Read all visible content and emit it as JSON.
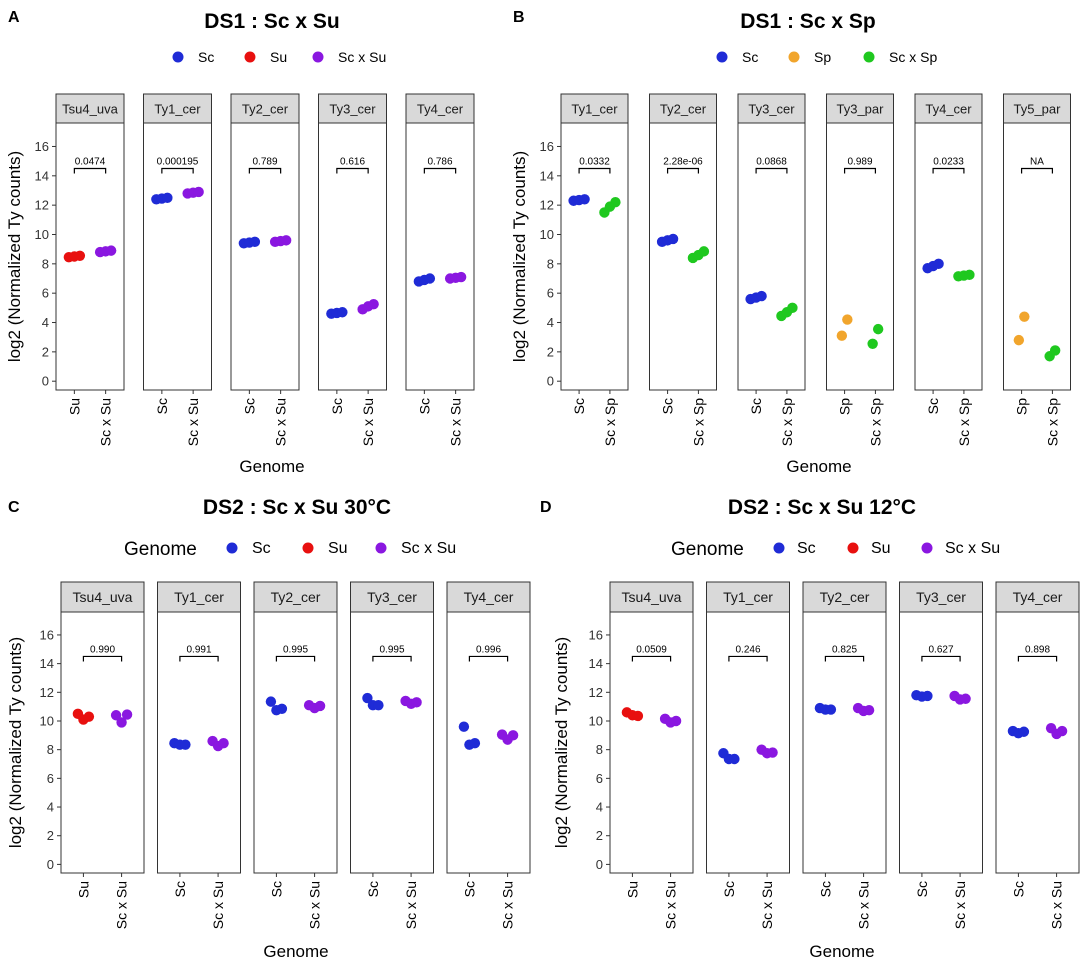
{
  "colors": {
    "Sc": "#1f2bd6",
    "Su": "#e8100f",
    "Sp": "#f1a52c",
    "ScxSu": "#8a17e0",
    "ScxSp": "#1fc81f",
    "strip_bg": "#d9d9d9",
    "panel_border": "#333333"
  },
  "chart_data": [
    {
      "panel": "A",
      "type": "scatter",
      "title": "DS1 : Sc x Su",
      "legend": {
        "title": "",
        "entries": [
          {
            "label": "Sc",
            "color_key": "Sc"
          },
          {
            "label": "Su",
            "color_key": "Su"
          },
          {
            "label": "Sc x Su",
            "color_key": "ScxSu"
          }
        ]
      },
      "ylabel": "log2 (Normalized Ty counts)",
      "xlabel": "Genome",
      "ylim": [
        -0.6,
        17.6
      ],
      "yticks": [
        0,
        2,
        4,
        6,
        8,
        10,
        12,
        14,
        16
      ],
      "facets": [
        {
          "label": "Tsu4_uva",
          "pvalue": "0.0474",
          "groups": [
            {
              "name": "Su",
              "color_key": "Su",
              "values": [
                8.45,
                8.5,
                8.55
              ]
            },
            {
              "name": "Sc x Su",
              "color_key": "ScxSu",
              "values": [
                8.8,
                8.85,
                8.9
              ]
            }
          ]
        },
        {
          "label": "Ty1_cer",
          "pvalue": "0.000195",
          "groups": [
            {
              "name": "Sc",
              "color_key": "Sc",
              "values": [
                12.4,
                12.45,
                12.5
              ]
            },
            {
              "name": "Sc x Su",
              "color_key": "ScxSu",
              "values": [
                12.8,
                12.85,
                12.9
              ]
            }
          ]
        },
        {
          "label": "Ty2_cer",
          "pvalue": "0.789",
          "groups": [
            {
              "name": "Sc",
              "color_key": "Sc",
              "values": [
                9.4,
                9.45,
                9.5
              ]
            },
            {
              "name": "Sc x Su",
              "color_key": "ScxSu",
              "values": [
                9.5,
                9.55,
                9.6
              ]
            }
          ]
        },
        {
          "label": "Ty3_cer",
          "pvalue": "0.616",
          "groups": [
            {
              "name": "Sc",
              "color_key": "Sc",
              "values": [
                4.6,
                4.65,
                4.7
              ]
            },
            {
              "name": "Sc x Su",
              "color_key": "ScxSu",
              "values": [
                4.9,
                5.1,
                5.25
              ]
            }
          ]
        },
        {
          "label": "Ty4_cer",
          "pvalue": "0.786",
          "groups": [
            {
              "name": "Sc",
              "color_key": "Sc",
              "values": [
                6.8,
                6.9,
                7.0
              ]
            },
            {
              "name": "Sc x Su",
              "color_key": "ScxSu",
              "values": [
                7.0,
                7.05,
                7.1
              ]
            }
          ]
        }
      ]
    },
    {
      "panel": "B",
      "type": "scatter",
      "title": "DS1 : Sc x Sp",
      "legend": {
        "title": "",
        "entries": [
          {
            "label": "Sc",
            "color_key": "Sc"
          },
          {
            "label": "Sp",
            "color_key": "Sp"
          },
          {
            "label": "Sc x Sp",
            "color_key": "ScxSp"
          }
        ]
      },
      "ylabel": "log2 (Normalized Ty counts)",
      "xlabel": "Genome",
      "ylim": [
        -0.6,
        17.6
      ],
      "yticks": [
        0,
        2,
        4,
        6,
        8,
        10,
        12,
        14,
        16
      ],
      "facets": [
        {
          "label": "Ty1_cer",
          "pvalue": "0.0332",
          "groups": [
            {
              "name": "Sc",
              "color_key": "Sc",
              "values": [
                12.3,
                12.35,
                12.4
              ]
            },
            {
              "name": "Sc x Sp",
              "color_key": "ScxSp",
              "values": [
                11.5,
                11.9,
                12.2
              ]
            }
          ]
        },
        {
          "label": "Ty2_cer",
          "pvalue": "2.28e-06",
          "groups": [
            {
              "name": "Sc",
              "color_key": "Sc",
              "values": [
                9.5,
                9.6,
                9.7
              ]
            },
            {
              "name": "Sc x Sp",
              "color_key": "ScxSp",
              "values": [
                8.4,
                8.6,
                8.85
              ]
            }
          ]
        },
        {
          "label": "Ty3_cer",
          "pvalue": "0.0868",
          "groups": [
            {
              "name": "Sc",
              "color_key": "Sc",
              "values": [
                5.6,
                5.7,
                5.8
              ]
            },
            {
              "name": "Sc x Sp",
              "color_key": "ScxSp",
              "values": [
                4.45,
                4.7,
                5.0
              ]
            }
          ]
        },
        {
          "label": "Ty3_par",
          "pvalue": "0.989",
          "groups": [
            {
              "name": "Sp",
              "color_key": "Sp",
              "values": [
                3.1,
                4.2
              ]
            },
            {
              "name": "Sc x Sp",
              "color_key": "ScxSp",
              "values": [
                2.55,
                3.55
              ]
            }
          ]
        },
        {
          "label": "Ty4_cer",
          "pvalue": "0.0233",
          "groups": [
            {
              "name": "Sc",
              "color_key": "Sc",
              "values": [
                7.7,
                7.85,
                8.0
              ]
            },
            {
              "name": "Sc x Sp",
              "color_key": "ScxSp",
              "values": [
                7.15,
                7.2,
                7.25
              ]
            }
          ]
        },
        {
          "label": "Ty5_par",
          "pvalue": "NA",
          "groups": [
            {
              "name": "Sp",
              "color_key": "Sp",
              "values": [
                2.8,
                4.4
              ]
            },
            {
              "name": "Sc x Sp",
              "color_key": "ScxSp",
              "values": [
                1.7,
                2.1
              ]
            }
          ]
        }
      ]
    },
    {
      "panel": "C",
      "type": "scatter",
      "title": "DS2 : Sc x Su 30°C",
      "legend": {
        "title": "Genome",
        "entries": [
          {
            "label": "Sc",
            "color_key": "Sc"
          },
          {
            "label": "Su",
            "color_key": "Su"
          },
          {
            "label": "Sc x Su",
            "color_key": "ScxSu"
          }
        ]
      },
      "ylabel": "log2 (Normalized Ty counts)",
      "xlabel": "Genome",
      "ylim": [
        -0.6,
        17.6
      ],
      "yticks": [
        0,
        2,
        4,
        6,
        8,
        10,
        12,
        14,
        16
      ],
      "facets": [
        {
          "label": "Tsu4_uva",
          "pvalue": "0.990",
          "groups": [
            {
              "name": "Su",
              "color_key": "Su",
              "values": [
                10.5,
                10.1,
                10.3
              ]
            },
            {
              "name": "Sc x Su",
              "color_key": "ScxSu",
              "values": [
                10.4,
                9.9,
                10.45
              ]
            }
          ]
        },
        {
          "label": "Ty1_cer",
          "pvalue": "0.991",
          "groups": [
            {
              "name": "Sc",
              "color_key": "Sc",
              "values": [
                8.45,
                8.35,
                8.35
              ]
            },
            {
              "name": "Sc x Su",
              "color_key": "ScxSu",
              "values": [
                8.6,
                8.25,
                8.45
              ]
            }
          ]
        },
        {
          "label": "Ty2_cer",
          "pvalue": "0.995",
          "groups": [
            {
              "name": "Sc",
              "color_key": "Sc",
              "values": [
                11.35,
                10.75,
                10.85
              ]
            },
            {
              "name": "Sc x Su",
              "color_key": "ScxSu",
              "values": [
                11.1,
                10.9,
                11.05
              ]
            }
          ]
        },
        {
          "label": "Ty3_cer",
          "pvalue": "0.995",
          "groups": [
            {
              "name": "Sc",
              "color_key": "Sc",
              "values": [
                11.6,
                11.1,
                11.1
              ]
            },
            {
              "name": "Sc x Su",
              "color_key": "ScxSu",
              "values": [
                11.4,
                11.2,
                11.3
              ]
            }
          ]
        },
        {
          "label": "Ty4_cer",
          "pvalue": "0.996",
          "groups": [
            {
              "name": "Sc",
              "color_key": "Sc",
              "values": [
                9.6,
                8.35,
                8.45
              ]
            },
            {
              "name": "Sc x Su",
              "color_key": "ScxSu",
              "values": [
                9.05,
                8.7,
                9.0
              ]
            }
          ]
        }
      ]
    },
    {
      "panel": "D",
      "type": "scatter",
      "title": "DS2 : Sc x Su 12°C",
      "legend": {
        "title": "Genome",
        "entries": [
          {
            "label": "Sc",
            "color_key": "Sc"
          },
          {
            "label": "Su",
            "color_key": "Su"
          },
          {
            "label": "Sc x Su",
            "color_key": "ScxSu"
          }
        ]
      },
      "ylabel": "log2 (Normalized Ty counts)",
      "xlabel": "Genome",
      "ylim": [
        -0.6,
        17.6
      ],
      "yticks": [
        0,
        2,
        4,
        6,
        8,
        10,
        12,
        14,
        16
      ],
      "facets": [
        {
          "label": "Tsu4_uva",
          "pvalue": "0.0509",
          "groups": [
            {
              "name": "Su",
              "color_key": "Su",
              "values": [
                10.6,
                10.4,
                10.35
              ]
            },
            {
              "name": "Sc x Su",
              "color_key": "ScxSu",
              "values": [
                10.15,
                9.9,
                10.0
              ]
            }
          ]
        },
        {
          "label": "Ty1_cer",
          "pvalue": "0.246",
          "groups": [
            {
              "name": "Sc",
              "color_key": "Sc",
              "values": [
                7.75,
                7.35,
                7.35
              ]
            },
            {
              "name": "Sc x Su",
              "color_key": "ScxSu",
              "values": [
                8.0,
                7.75,
                7.8
              ]
            }
          ]
        },
        {
          "label": "Ty2_cer",
          "pvalue": "0.825",
          "groups": [
            {
              "name": "Sc",
              "color_key": "Sc",
              "values": [
                10.9,
                10.8,
                10.8
              ]
            },
            {
              "name": "Sc x Su",
              "color_key": "ScxSu",
              "values": [
                10.9,
                10.7,
                10.75
              ]
            }
          ]
        },
        {
          "label": "Ty3_cer",
          "pvalue": "0.627",
          "groups": [
            {
              "name": "Sc",
              "color_key": "Sc",
              "values": [
                11.8,
                11.7,
                11.75
              ]
            },
            {
              "name": "Sc x Su",
              "color_key": "ScxSu",
              "values": [
                11.75,
                11.5,
                11.55
              ]
            }
          ]
        },
        {
          "label": "Ty4_cer",
          "pvalue": "0.898",
          "groups": [
            {
              "name": "Sc",
              "color_key": "Sc",
              "values": [
                9.3,
                9.15,
                9.25
              ]
            },
            {
              "name": "Sc x Su",
              "color_key": "ScxSu",
              "values": [
                9.5,
                9.1,
                9.3
              ]
            }
          ]
        }
      ]
    }
  ]
}
